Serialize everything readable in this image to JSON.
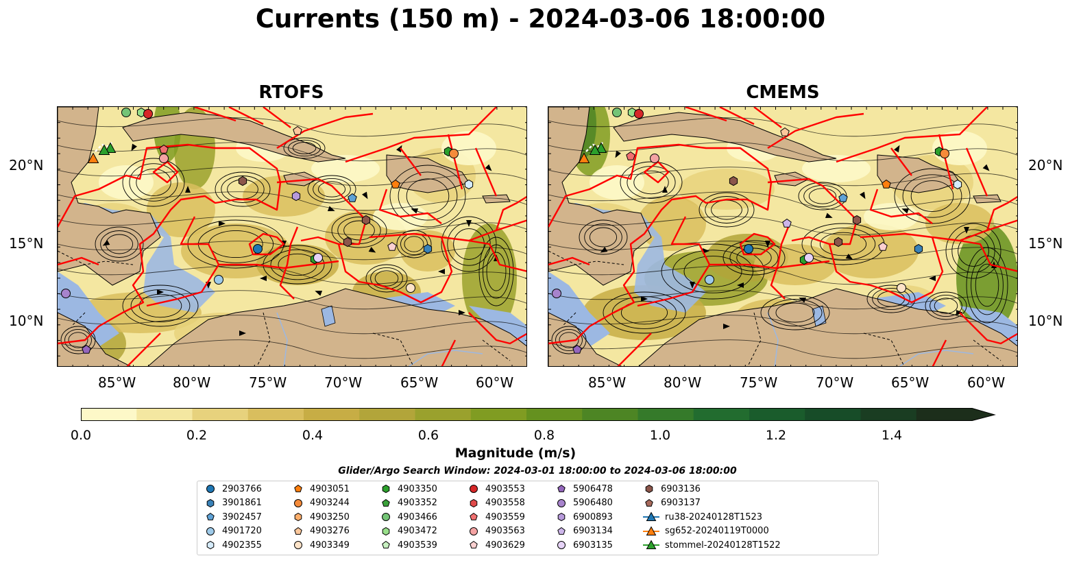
{
  "title": "Currents (150 m) - 2024-03-06 18:00:00",
  "panels": [
    {
      "title": "RTOFS"
    },
    {
      "title": "CMEMS"
    }
  ],
  "axes": {
    "lon_ticks": [
      "85°W",
      "80°W",
      "75°W",
      "70°W",
      "65°W",
      "60°W"
    ],
    "lat_ticks": [
      "20°N",
      "15°N",
      "10°N"
    ]
  },
  "colorbar": {
    "label": "Magnitude (m/s)",
    "ticks": [
      "0.0",
      "0.2",
      "0.4",
      "0.6",
      "0.8",
      "1.0",
      "1.2",
      "1.4"
    ],
    "colors": [
      "#fdf8c8",
      "#f4e7a1",
      "#e7d27d",
      "#d9be5e",
      "#c7ad45",
      "#b2a53a",
      "#9aa12d",
      "#809c22",
      "#65911f",
      "#4d8524",
      "#357a2a",
      "#226c2f",
      "#1a5c2c",
      "#174c28",
      "#1a3d22",
      "#1c2e1b"
    ]
  },
  "search_window": "Glider/Argo Search Window: 2024-03-01 18:00:00 to 2024-03-06 18:00:00",
  "legend": [
    {
      "label": "2903766",
      "marker": "circle",
      "color": "#1f77b4"
    },
    {
      "label": "3901861",
      "marker": "hexagon",
      "color": "#3a82b8"
    },
    {
      "label": "3902457",
      "marker": "pentagon",
      "color": "#5fa2d6"
    },
    {
      "label": "4901720",
      "marker": "circle",
      "color": "#9ecae9"
    },
    {
      "label": "4902355",
      "marker": "hexagon",
      "color": "#d6ecfb"
    },
    {
      "label": "4903051",
      "marker": "pentagon",
      "color": "#ff7f0e"
    },
    {
      "label": "4903244",
      "marker": "circle",
      "color": "#f58b3a"
    },
    {
      "label": "4903250",
      "marker": "hexagon",
      "color": "#fdae6b"
    },
    {
      "label": "4903276",
      "marker": "pentagon",
      "color": "#fdc89c"
    },
    {
      "label": "4903349",
      "marker": "circle",
      "color": "#fde3c8"
    },
    {
      "label": "4903350",
      "marker": "hexagon",
      "color": "#2ca02c"
    },
    {
      "label": "4903352",
      "marker": "pentagon",
      "color": "#3aa13a"
    },
    {
      "label": "4903466",
      "marker": "circle",
      "color": "#74c476"
    },
    {
      "label": "4903472",
      "marker": "hexagon",
      "color": "#98df8a"
    },
    {
      "label": "4903539",
      "marker": "pentagon",
      "color": "#c7f0c0"
    },
    {
      "label": "4903553",
      "marker": "circle",
      "color": "#d62728"
    },
    {
      "label": "4903558",
      "marker": "hexagon",
      "color": "#e04a4a"
    },
    {
      "label": "4903559",
      "marker": "pentagon",
      "color": "#f07070"
    },
    {
      "label": "4903563",
      "marker": "circle",
      "color": "#f4a3a3"
    },
    {
      "label": "4903629",
      "marker": "pentagon",
      "color": "#fbd0d0"
    },
    {
      "label": "5906478",
      "marker": "pentagon",
      "color": "#9467bd"
    },
    {
      "label": "5906480",
      "marker": "circle",
      "color": "#a783cc"
    },
    {
      "label": "6900893",
      "marker": "hexagon",
      "color": "#b79adb"
    },
    {
      "label": "6903134",
      "marker": "pentagon",
      "color": "#cdb6ea"
    },
    {
      "label": "6903135",
      "marker": "circle",
      "color": "#e6d3f7"
    },
    {
      "label": "6903136",
      "marker": "hexagon",
      "color": "#8c564b"
    },
    {
      "label": "6903137",
      "marker": "pentagon",
      "color": "#a76a5c"
    },
    {
      "label": "ru38-20240128T1523",
      "marker": "triangle-line",
      "color": "#1f77b4"
    },
    {
      "label": "sg652-20240119T0000",
      "marker": "triangle-line",
      "color": "#ff7f0e"
    },
    {
      "label": "stommel-20240128T1522",
      "marker": "triangle-line",
      "color": "#2ca02c"
    }
  ],
  "colors": {
    "land": "#d2b48c",
    "shelf": "#9cb8e2",
    "eez": "#ff0000",
    "streamline": "#000000"
  }
}
